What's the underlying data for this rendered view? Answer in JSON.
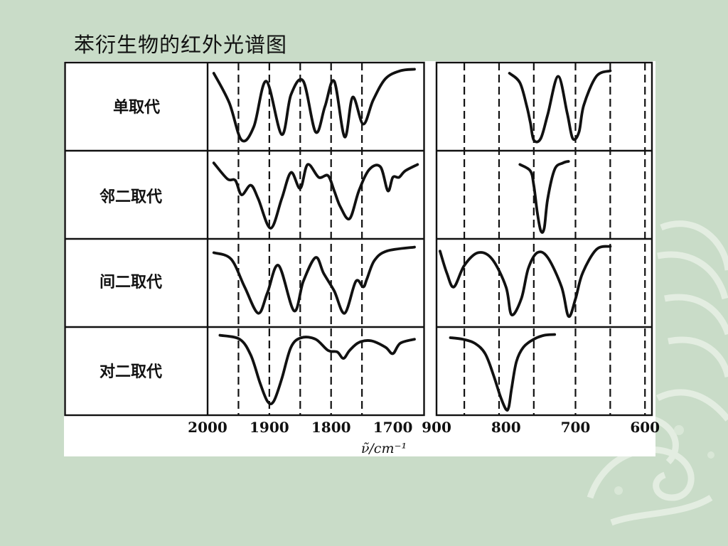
{
  "slide": {
    "title": "苯衍生物的红外光谱图",
    "background_color": "#c9dcc8",
    "decoration_icon": "swirl-ornament-icon"
  },
  "chart_data": {
    "type": "line",
    "xlabel": "ν̃/cm⁻¹",
    "rows": [
      "单取代",
      "邻二取代",
      "间二取代",
      "对二取代"
    ],
    "panels": [
      {
        "name": "overtone-region",
        "xlim": [
          2000,
          1650
        ],
        "ticks": [
          2000,
          1900,
          1800,
          1700
        ],
        "tick_labels": [
          "2000",
          "1900",
          "1800",
          "1700"
        ],
        "dashed_lines": [
          1950,
          1900,
          1850,
          1800,
          1750
        ],
        "series": [
          {
            "row": "单取代",
            "x": [
              1990,
              1965,
              1945,
              1925,
              1905,
              1880,
              1865,
              1845,
              1825,
              1810,
              1795,
              1778,
              1765,
              1748,
              1732,
              1712,
              1688,
              1665
            ],
            "y": [
              0.92,
              0.55,
              0.08,
              0.25,
              0.82,
              0.15,
              0.65,
              0.82,
              0.18,
              0.5,
              0.82,
              0.12,
              0.62,
              0.28,
              0.58,
              0.85,
              0.95,
              0.97
            ]
          },
          {
            "row": "邻二取代",
            "x": [
              1990,
              1968,
              1955,
              1945,
              1930,
              1918,
              1898,
              1880,
              1865,
              1850,
              1838,
              1820,
              1805,
              1795,
              1785,
              1770,
              1755,
              1738,
              1720,
              1708,
              1700,
              1690,
              1680,
              1660
            ],
            "y": [
              0.9,
              0.7,
              0.68,
              0.5,
              0.62,
              0.45,
              0.08,
              0.45,
              0.78,
              0.58,
              0.88,
              0.72,
              0.74,
              0.55,
              0.35,
              0.2,
              0.55,
              0.82,
              0.85,
              0.55,
              0.72,
              0.72,
              0.8,
              0.88
            ]
          },
          {
            "row": "间二取代",
            "x": [
              1990,
              1962,
              1940,
              1918,
              1903,
              1885,
              1860,
              1845,
              1825,
              1812,
              1795,
              1778,
              1760,
              1748,
              1742,
              1730,
              1710,
              1665
            ],
            "y": [
              0.88,
              0.8,
              0.45,
              0.12,
              0.38,
              0.72,
              0.15,
              0.52,
              0.82,
              0.62,
              0.4,
              0.12,
              0.52,
              0.45,
              0.55,
              0.78,
              0.9,
              0.95
            ]
          },
          {
            "row": "对二取代",
            "x": [
              1980,
              1948,
              1930,
              1915,
              1903,
              1893,
              1880,
              1865,
              1848,
              1825,
              1805,
              1790,
              1780,
              1770,
              1755,
              1735,
              1712,
              1700,
              1688,
              1665
            ],
            "y": [
              0.95,
              0.9,
              0.7,
              0.35,
              0.12,
              0.12,
              0.4,
              0.8,
              0.92,
              0.9,
              0.76,
              0.74,
              0.66,
              0.76,
              0.86,
              0.88,
              0.8,
              0.72,
              0.85,
              0.9
            ]
          }
        ]
      },
      {
        "name": "out-of-plane-region",
        "xlim": [
          900,
          590
        ],
        "ticks": [
          900,
          800,
          700,
          600
        ],
        "tick_labels": [
          "900",
          "800",
          "700",
          "600"
        ],
        "dashed_lines": [
          860,
          810,
          760,
          700,
          650,
          600
        ],
        "series": [
          {
            "row": "单取代",
            "x": [
              795,
              780,
              770,
              765,
              760,
              750,
              740,
              725,
              712,
              704,
              695,
              688,
              670,
              650
            ],
            "y": [
              0.92,
              0.8,
              0.5,
              0.3,
              0.08,
              0.1,
              0.4,
              0.88,
              0.42,
              0.1,
              0.18,
              0.52,
              0.88,
              0.95
            ]
          },
          {
            "row": "邻二取代",
            "x": [
              780,
              765,
              760,
              755,
              750,
              745,
              740,
              730,
              718,
              710
            ],
            "y": [
              0.88,
              0.8,
              0.62,
              0.28,
              0.05,
              0.08,
              0.45,
              0.82,
              0.9,
              0.92
            ]
          },
          {
            "row": "间二取代",
            "x": [
              895,
              885,
              875,
              860,
              840,
              820,
              800,
              792,
              778,
              768,
              755,
              740,
              720,
              710,
              700,
              690,
              670,
              650
            ],
            "y": [
              0.9,
              0.62,
              0.45,
              0.72,
              0.88,
              0.8,
              0.45,
              0.1,
              0.3,
              0.68,
              0.88,
              0.82,
              0.45,
              0.08,
              0.3,
              0.62,
              0.92,
              0.96
            ]
          },
          {
            "row": "对二取代",
            "x": [
              880,
              862,
              845,
              830,
              818,
              808,
              800,
              796,
              792,
              785,
              775,
              760,
              745,
              730
            ],
            "y": [
              0.92,
              0.9,
              0.85,
              0.72,
              0.45,
              0.18,
              0.02,
              0.05,
              0.28,
              0.62,
              0.8,
              0.9,
              0.95,
              0.96
            ]
          }
        ]
      }
    ]
  }
}
